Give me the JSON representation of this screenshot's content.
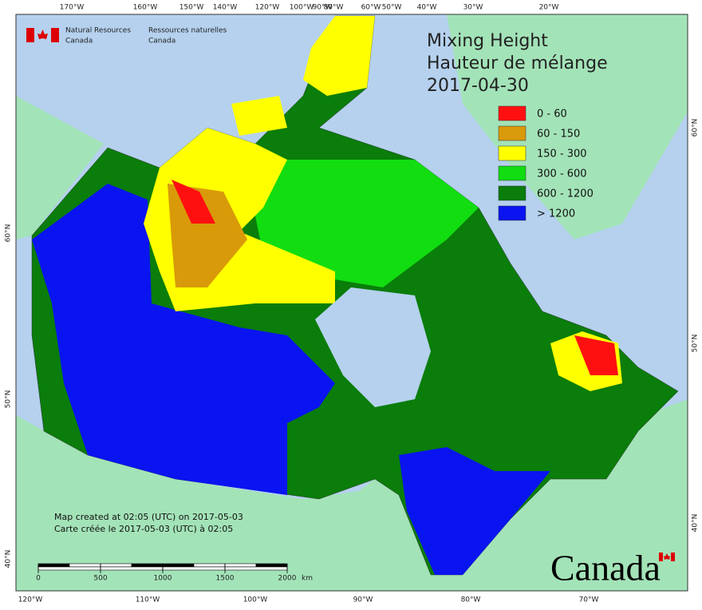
{
  "agency": {
    "en_1": "Natural Resources",
    "en_2": "Canada",
    "fr_1": "Ressources naturelles",
    "fr_2": "Canada"
  },
  "title": {
    "line1": "Mixing Height",
    "line2": "Hauteur de mélange",
    "date": "2017-04-30"
  },
  "legend": [
    {
      "label": "0 - 60",
      "color": "#ff1010"
    },
    {
      "label": "60 - 150",
      "color": "#d99a0a"
    },
    {
      "label": "150 - 300",
      "color": "#ffff00"
    },
    {
      "label": "300 - 600",
      "color": "#11dd11"
    },
    {
      "label": "600 - 1200",
      "color": "#0a7d0a"
    },
    {
      "label": "> 1200",
      "color": "#0a14f0"
    }
  ],
  "top_labels": [
    "170°W",
    "160°W",
    "150°W",
    "140°W",
    "120°W",
    "100°W",
    "90°W",
    "80°W",
    "60°W",
    "50°W",
    "40°W",
    "30°W",
    "20°W"
  ],
  "bottom_labels": [
    "120°W",
    "110°W",
    "100°W",
    "90°W",
    "80°W",
    "70°W"
  ],
  "left_labels": [
    "60°N",
    "50°N",
    "40°N"
  ],
  "right_labels": [
    "60°N",
    "50°N",
    "40°N"
  ],
  "credits": {
    "en": "Map created at 02:05 (UTC) on 2017-05-03",
    "fr": "Carte créée le 2017-05-03 (UTC) à 02:05"
  },
  "scale": {
    "ticks": [
      0,
      500,
      1000,
      1500,
      2000
    ],
    "unit": "km"
  },
  "wordmark": "Canada"
}
